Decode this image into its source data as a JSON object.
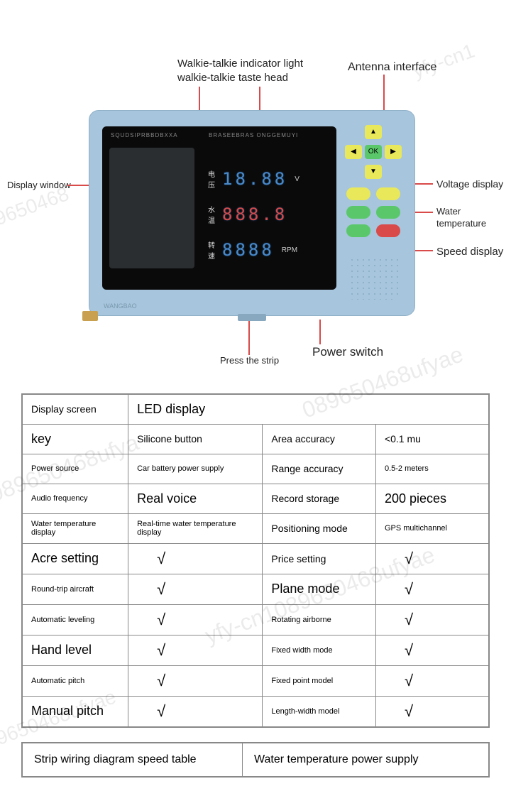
{
  "watermarks": [
    "089650468",
    "yfy-cn1",
    "089650468ufyae",
    "cn1089650468ufya",
    "yfy-cn1089650468ufyae",
    "089650468ufyae"
  ],
  "labels": {
    "walkie": "Walkie-talkie indicator light\nwalkie-talkie taste head",
    "antenna": "Antenna interface",
    "display_window": "Display window",
    "voltage": "Voltage display",
    "water_temp": "Water temperature",
    "speed": "Speed display",
    "power_switch": "Power switch",
    "press_strip": "Press the strip"
  },
  "device": {
    "header1": "SQUDSIPRBBDBXXA",
    "header2": "BRASEEBRAS ONGGEMUYI",
    "rows": [
      {
        "cn": "电压",
        "digits": "18.88",
        "unit": "V",
        "color": "#4a8aca"
      },
      {
        "cn": "水温",
        "digits": "888.8",
        "unit": "",
        "color": "#d94a4a"
      },
      {
        "cn": "转速",
        "digits": "8888",
        "unit": "RPM",
        "color": "#4a8aca"
      }
    ],
    "logo": "WANGBAO",
    "dpad": {
      "up": "▲",
      "down": "▼",
      "left": "◀",
      "right": "▶",
      "ok": "OK"
    }
  },
  "table": {
    "rows": [
      [
        "Display screen",
        "LED display",
        "",
        ""
      ],
      [
        "key",
        "Silicone button",
        "Area accuracy",
        "<0.1 mu"
      ],
      [
        "Power source",
        "Car battery power supply",
        "Range accuracy",
        "0.5-2 meters"
      ],
      [
        "Audio frequency",
        "Real voice",
        "Record storage",
        "200 pieces"
      ],
      [
        "Water temperature display",
        "Real-time water temperature display",
        "Positioning mode",
        "GPS multichannel"
      ],
      [
        "Acre setting",
        "√",
        "Price setting",
        "√"
      ],
      [
        "Round-trip aircraft",
        "√",
        "Plane mode",
        "√"
      ],
      [
        "Automatic leveling",
        "√",
        "Rotating airborne",
        "√"
      ],
      [
        "Hand level",
        "√",
        "Fixed width mode",
        "√"
      ],
      [
        "Automatic pitch",
        "√",
        "Fixed point model",
        "√"
      ],
      [
        "Manual pitch",
        "√",
        "Length-width model",
        "√"
      ]
    ],
    "big_cells": [
      "LED display",
      "key",
      "Real voice",
      "200 pieces",
      "Acre setting",
      "Plane mode",
      "Hand level",
      "Manual pitch"
    ],
    "small_cells": [
      "Power source",
      "Car battery power supply",
      "Audio frequency",
      "Water temperature display",
      "Real-time water temperature display",
      "Round-trip aircraft",
      "Automatic leveling",
      "Automatic pitch",
      "GPS multichannel",
      "0.5-2 meters",
      "Fixed width mode",
      "Fixed point model",
      "Length-width model",
      "Rotating airborne"
    ]
  },
  "footer": {
    "left": "Strip wiring diagram speed table",
    "right": "Water temperature power supply"
  }
}
